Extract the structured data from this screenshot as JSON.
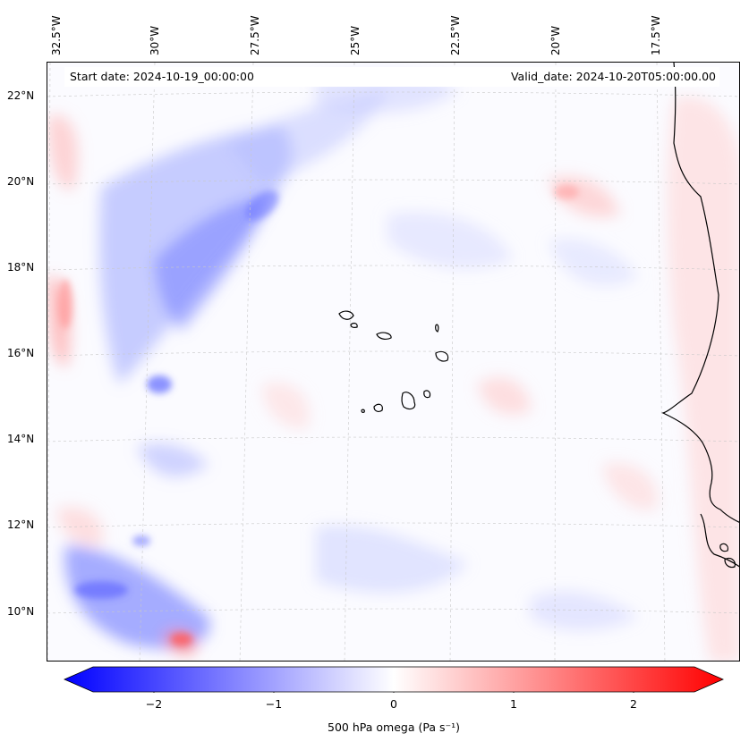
{
  "header": {
    "start_date": "Start date: 2024-10-19_00:00:00",
    "valid_date": "Valid_date: 2024-10-20T05:00:00.00"
  },
  "axes": {
    "lon_labels": [
      "32.5°W",
      "30°W",
      "27.5°W",
      "25°W",
      "22.5°W",
      "20°W",
      "17.5°W"
    ],
    "lat_labels": [
      "22°N",
      "20°N",
      "18°N",
      "16°N",
      "14°N",
      "12°N",
      "10°N"
    ]
  },
  "colorbar": {
    "label": "500 hPa omega (Pa s⁻¹)",
    "ticks": [
      "−2",
      "−1",
      "0",
      "1",
      "2"
    ],
    "min": -2.5,
    "max": 2.5,
    "negative_color": "#0000ff",
    "neutral_color": "#ffffff",
    "positive_color": "#ff0000"
  },
  "map": {
    "extent": {
      "lon_min": -32.8,
      "lon_max": -15.5,
      "lat_min": 8.9,
      "lat_max": 22.8
    },
    "gridline_color": "#c8c8c8",
    "coastline_color": "#000000"
  }
}
